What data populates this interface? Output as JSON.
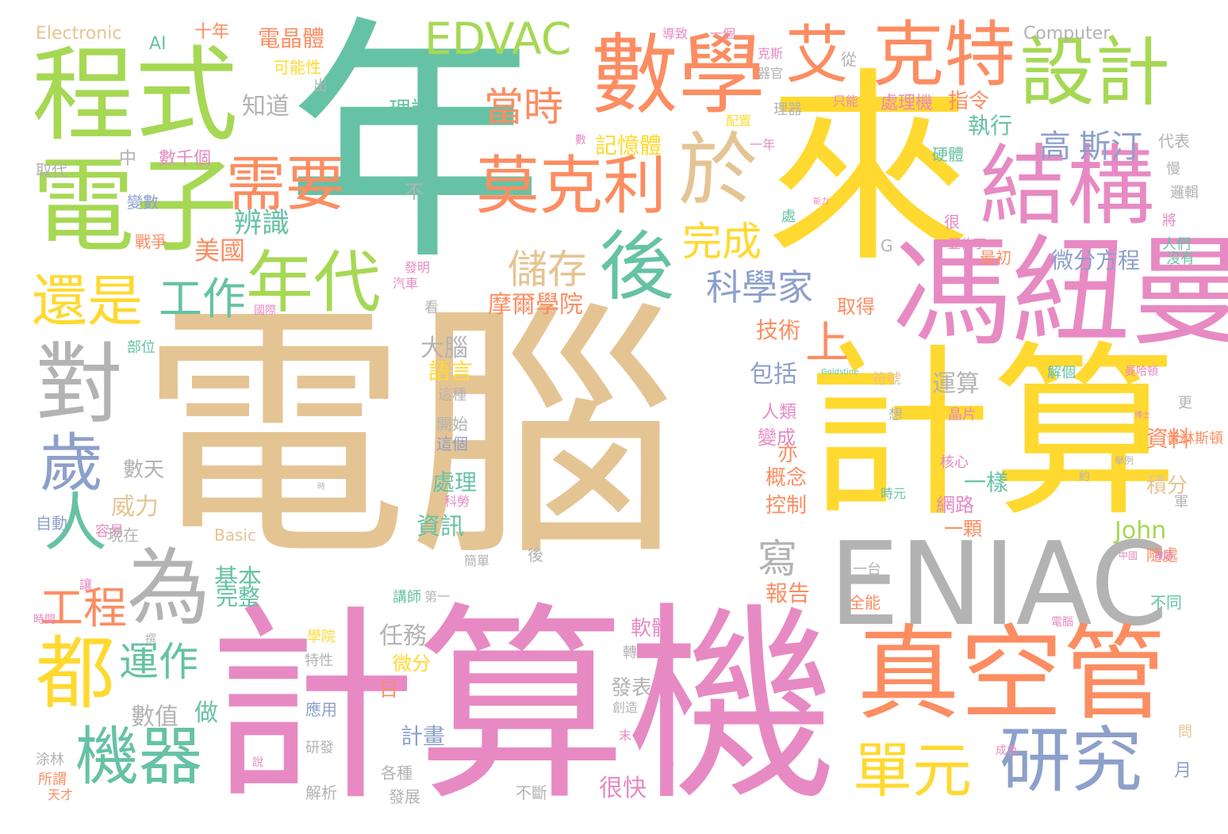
{
  "palette": {
    "teal": "#66c2a5",
    "orange": "#fc8d62",
    "blue": "#8da0cb",
    "pink": "#e78ac3",
    "green": "#a6d854",
    "yellow": "#ffd92f",
    "tan": "#e5c494",
    "gray": "#b3b3b3"
  },
  "words": [
    "電腦",
    "計算機",
    "年",
    "來",
    "計算",
    "馮紐曼",
    "ENIAC",
    "真空管",
    "數學",
    "程式",
    "電子",
    "結構",
    "設計",
    "克特",
    "艾",
    "EDVAC",
    "於",
    "莫克利",
    "需要",
    "年代",
    "後",
    "對",
    "人",
    "為",
    "歲",
    "都",
    "機器",
    "研究",
    "單元",
    "還是",
    "工作",
    "工程",
    "運作",
    "上",
    "完成",
    "儲存",
    "當時",
    "科學家",
    "高",
    "斯汀",
    "辨識",
    "美國",
    "知道",
    "理論",
    "記憶體",
    "摩爾學院",
    "寫",
    "大腦",
    "語言",
    "運算",
    "包括",
    "技術",
    "執行",
    "指令",
    "處理機",
    "微分方程",
    "積分",
    "資料",
    "一樣",
    "John",
    "網路",
    "一顆",
    "控制",
    "概念",
    "亦",
    "人類",
    "變成",
    "報告",
    "發表",
    "軟體",
    "很快",
    "計畫",
    "任務",
    "微分",
    "處理",
    "資訊",
    "數天",
    "數值",
    "做",
    "基本",
    "完整",
    "威力",
    "電晶體",
    "十年",
    "Electronic",
    "AI",
    "可能性",
    "Computer",
    "導致",
    "一個",
    "從",
    "克斯",
    "出",
    "理器",
    "只能",
    "硬體",
    "代表",
    "取代",
    "中",
    "數千個",
    "不",
    "變數",
    "戰爭",
    "最初",
    "人們",
    "沒有",
    "將",
    "很",
    "G",
    "取得",
    "發明",
    "汽車",
    "看",
    "國際",
    "部位",
    "Goldstine",
    "符號",
    "解個",
    "曼哈頓",
    "開始",
    "這個",
    "這種",
    "容易",
    "自動",
    "現在",
    "Basic",
    "時間",
    "讓",
    "撰",
    "學院",
    "特性",
    "講師",
    "第一",
    "簡單",
    "一台",
    "全能",
    "不同",
    "隨處",
    "電腦",
    "後",
    "應用",
    "研發",
    "創造",
    "末",
    "各種",
    "發展",
    "不斷",
    "解析",
    "天才",
    "涂林",
    "所謂",
    "說",
    "馬",
    "成為",
    "月",
    "問",
    "晶片",
    "核心",
    "科勞",
    "時元",
    "舉例",
    "約",
    "中國",
    "複雜",
    "博士",
    "普林斯頓",
    "軍",
    "想",
    "更",
    "時",
    "轉",
    "日",
    "亞伯丁",
    "慢",
    "邏輯",
    "處",
    "能力",
    "一年",
    "配置",
    "器官",
    "數",
    "最"
  ]
}
